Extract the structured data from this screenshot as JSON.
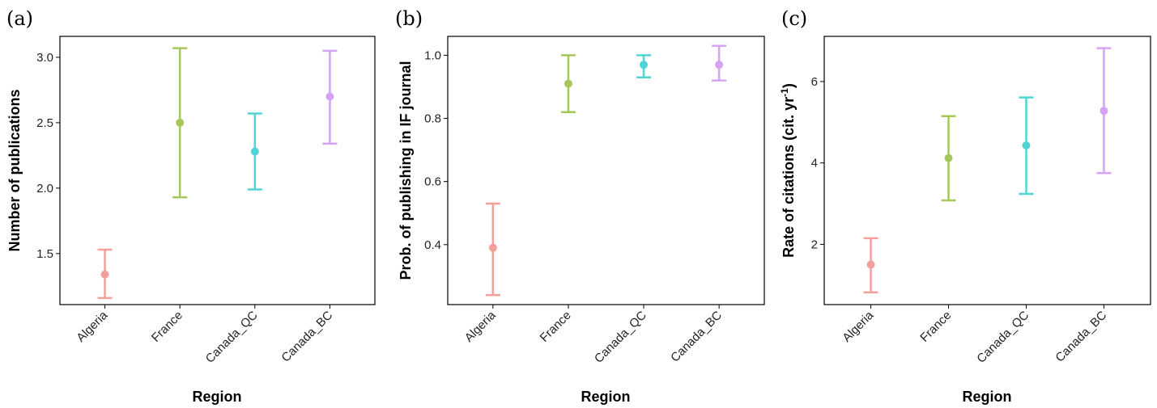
{
  "colors": {
    "Algeria": "#F4A09A",
    "France": "#A6C75A",
    "Canada_QC": "#52D4D4",
    "Canada_BC": "#D6A2F5"
  },
  "chart_data": [
    {
      "type": "errorbar",
      "panel": "(a)",
      "categories": [
        "Algeria",
        "France",
        "Canada_QC",
        "Canada_BC"
      ],
      "values": [
        1.34,
        2.5,
        2.28,
        2.7
      ],
      "lower": [
        1.16,
        1.93,
        1.99,
        2.34
      ],
      "upper": [
        1.53,
        3.07,
        2.57,
        3.05
      ],
      "xlabel": "Region",
      "ylabel": "Number of publications",
      "yticks": [
        "1.5",
        "2.0",
        "2.5",
        "3.0"
      ],
      "ylim": [
        1.11,
        3.16
      ]
    },
    {
      "type": "errorbar",
      "panel": "(b)",
      "categories": [
        "Algeria",
        "France",
        "Canada_QC",
        "Canada_BC"
      ],
      "values": [
        0.39,
        0.91,
        0.97,
        0.97
      ],
      "lower": [
        0.24,
        0.82,
        0.93,
        0.92
      ],
      "upper": [
        0.53,
        1.0,
        1.0,
        1.03
      ],
      "xlabel": "Region",
      "ylabel": "Prob. of publishing in IF journal",
      "yticks": [
        "0.4",
        "0.6",
        "0.8",
        "1.0"
      ],
      "ylim": [
        0.21,
        1.06
      ]
    },
    {
      "type": "errorbar",
      "panel": "(c)",
      "categories": [
        "Algeria",
        "France",
        "Canada_QC",
        "Canada_BC"
      ],
      "values": [
        1.5,
        4.12,
        4.43,
        5.28
      ],
      "lower": [
        0.82,
        3.08,
        3.24,
        3.75
      ],
      "upper": [
        2.15,
        5.15,
        5.61,
        6.82
      ],
      "xlabel": "Region",
      "ylabel": "Rate of citations (cit. yr",
      "ylabel_sup": "-1",
      "ylabel_end": ")",
      "yticks": [
        "2",
        "4",
        "6"
      ],
      "ylim": [
        0.52,
        7.11
      ]
    }
  ]
}
